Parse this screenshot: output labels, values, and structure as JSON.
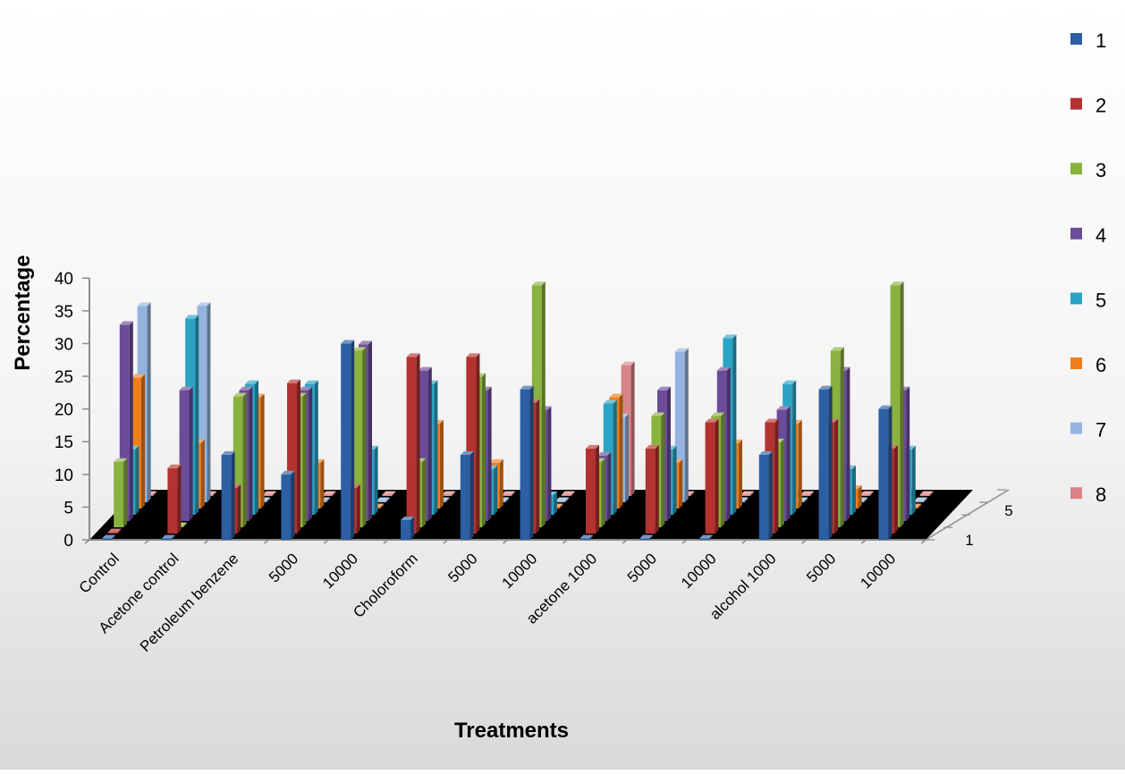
{
  "chart_data": {
    "type": "bar",
    "subtype": "3d-clustered-column",
    "xlabel": "Treatments",
    "ylabel": "Percentage",
    "ylim": [
      0,
      40
    ],
    "yticks": [
      0,
      5,
      10,
      15,
      20,
      25,
      30,
      35,
      40
    ],
    "depth_ticks": [
      "1",
      "5"
    ],
    "legend_position": "right",
    "grid": false,
    "categories": [
      "Control",
      "Acetone control",
      "Petroleum benzene",
      "5000",
      "10000",
      "Choloroform",
      "5000",
      "10000",
      "acetone 1000",
      "5000",
      "10000",
      "alcohol 1000",
      "5000",
      "10000"
    ],
    "series": [
      {
        "name": "1",
        "color": "#2c5fa3",
        "values": [
          0,
          0,
          13,
          10,
          30,
          3,
          13,
          23,
          0,
          0,
          0,
          13,
          23,
          20
        ]
      },
      {
        "name": "2",
        "color": "#b43230",
        "values": [
          0,
          10,
          7,
          23,
          7,
          27,
          27,
          20,
          13,
          13,
          17,
          17,
          17,
          13
        ]
      },
      {
        "name": "3",
        "color": "#8ab23e",
        "values": [
          10,
          0,
          20,
          20,
          27,
          10,
          23,
          37,
          10,
          17,
          17,
          13,
          27,
          37
        ]
      },
      {
        "name": "4",
        "color": "#6b4c98",
        "values": [
          30,
          20,
          20,
          20,
          27,
          23,
          20,
          17,
          10,
          20,
          23,
          17,
          23,
          20
        ]
      },
      {
        "name": "5",
        "color": "#2aa3c4",
        "values": [
          10,
          30,
          20,
          20,
          10,
          20,
          7,
          3,
          17,
          10,
          27,
          20,
          7,
          10
        ]
      },
      {
        "name": "6",
        "color": "#f07e1c",
        "values": [
          20,
          10,
          17,
          7,
          0,
          13,
          7,
          0,
          17,
          7,
          10,
          13,
          3,
          0
        ]
      },
      {
        "name": "7",
        "color": "#94b3de",
        "values": [
          30,
          30,
          0,
          0,
          0,
          0,
          0,
          0,
          13,
          23,
          0,
          0,
          0,
          0
        ]
      },
      {
        "name": "8",
        "color": "#d88486",
        "values": [
          0,
          0,
          0,
          0,
          0,
          0,
          0,
          0,
          20,
          0,
          0,
          0,
          0,
          0
        ]
      }
    ]
  }
}
